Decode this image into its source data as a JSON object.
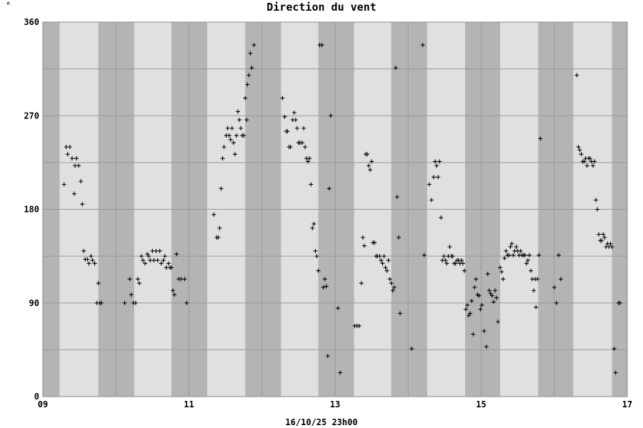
{
  "unit_label": "°",
  "footer": "16/10/25 23h00",
  "chart_data": {
    "type": "scatter",
    "title": "Direction du vent",
    "xlabel": "",
    "ylabel": "",
    "xlim": [
      9.0,
      17.0
    ],
    "ylim": [
      0,
      360
    ],
    "y_ticks": [
      0,
      90,
      180,
      270,
      360
    ],
    "x_ticks": [
      {
        "value": 9,
        "label": "09"
      },
      {
        "value": 11,
        "label": "11"
      },
      {
        "value": 13,
        "label": "13"
      },
      {
        "value": 15,
        "label": "15"
      },
      {
        "value": 17,
        "label": "17"
      }
    ],
    "grid": true,
    "night_bands": [
      [
        9.0,
        9.23
      ],
      [
        9.76,
        10.25
      ],
      [
        10.76,
        11.25
      ],
      [
        11.77,
        12.26
      ],
      [
        12.77,
        13.26
      ],
      [
        13.77,
        14.26
      ],
      [
        14.78,
        15.26
      ],
      [
        15.78,
        16.26
      ],
      [
        16.79,
        17.0
      ]
    ],
    "colors": {
      "night": "#b4b4b4",
      "day": "#e0e0e0",
      "grid": "#999999",
      "marker": "#000000"
    },
    "points": [
      [
        9.29,
        204
      ],
      [
        9.32,
        240
      ],
      [
        9.34,
        233
      ],
      [
        9.37,
        240
      ],
      [
        9.4,
        229
      ],
      [
        9.43,
        195
      ],
      [
        9.44,
        222
      ],
      [
        9.46,
        229
      ],
      [
        9.49,
        222
      ],
      [
        9.52,
        207
      ],
      [
        9.54,
        185
      ],
      [
        9.56,
        140
      ],
      [
        9.58,
        132
      ],
      [
        9.61,
        132
      ],
      [
        9.63,
        128
      ],
      [
        9.66,
        135
      ],
      [
        9.68,
        131
      ],
      [
        9.71,
        128
      ],
      [
        9.74,
        90
      ],
      [
        9.76,
        109
      ],
      [
        9.78,
        90
      ],
      [
        9.8,
        90
      ],
      [
        10.12,
        90
      ],
      [
        10.19,
        113
      ],
      [
        10.21,
        98
      ],
      [
        10.24,
        90
      ],
      [
        10.27,
        90
      ],
      [
        10.3,
        113
      ],
      [
        10.32,
        109
      ],
      [
        10.35,
        135
      ],
      [
        10.37,
        131
      ],
      [
        10.4,
        128
      ],
      [
        10.43,
        137
      ],
      [
        10.45,
        135
      ],
      [
        10.47,
        131
      ],
      [
        10.5,
        140
      ],
      [
        10.52,
        131
      ],
      [
        10.55,
        140
      ],
      [
        10.57,
        131
      ],
      [
        10.6,
        140
      ],
      [
        10.62,
        128
      ],
      [
        10.65,
        131
      ],
      [
        10.67,
        135
      ],
      [
        10.69,
        124
      ],
      [
        10.72,
        128
      ],
      [
        10.74,
        124
      ],
      [
        10.76,
        124
      ],
      [
        10.78,
        102
      ],
      [
        10.8,
        98
      ],
      [
        10.83,
        137
      ],
      [
        10.86,
        113
      ],
      [
        10.89,
        113
      ],
      [
        10.94,
        113
      ],
      [
        10.97,
        90
      ],
      [
        11.34,
        175
      ],
      [
        11.38,
        153
      ],
      [
        11.4,
        153
      ],
      [
        11.42,
        162
      ],
      [
        11.44,
        200
      ],
      [
        11.46,
        229
      ],
      [
        11.48,
        240
      ],
      [
        11.51,
        251
      ],
      [
        11.53,
        258
      ],
      [
        11.55,
        251
      ],
      [
        11.57,
        247
      ],
      [
        11.59,
        258
      ],
      [
        11.61,
        244
      ],
      [
        11.63,
        233
      ],
      [
        11.65,
        251
      ],
      [
        11.67,
        274
      ],
      [
        11.69,
        266
      ],
      [
        11.71,
        258
      ],
      [
        11.73,
        251
      ],
      [
        11.75,
        251
      ],
      [
        11.77,
        287
      ],
      [
        11.79,
        266
      ],
      [
        11.8,
        300
      ],
      [
        11.82,
        309
      ],
      [
        11.84,
        330
      ],
      [
        11.86,
        316
      ],
      [
        11.89,
        338
      ],
      [
        12.28,
        287
      ],
      [
        12.31,
        269
      ],
      [
        12.33,
        255
      ],
      [
        12.35,
        255
      ],
      [
        12.37,
        240
      ],
      [
        12.39,
        240
      ],
      [
        12.42,
        266
      ],
      [
        12.44,
        273
      ],
      [
        12.46,
        266
      ],
      [
        12.48,
        258
      ],
      [
        12.5,
        244
      ],
      [
        12.52,
        244
      ],
      [
        12.55,
        244
      ],
      [
        12.57,
        258
      ],
      [
        12.59,
        240
      ],
      [
        12.61,
        229
      ],
      [
        12.63,
        226
      ],
      [
        12.65,
        229
      ],
      [
        12.67,
        204
      ],
      [
        12.69,
        162
      ],
      [
        12.71,
        166
      ],
      [
        12.73,
        140
      ],
      [
        12.75,
        135
      ],
      [
        12.77,
        121
      ],
      [
        12.79,
        338
      ],
      [
        12.82,
        338
      ],
      [
        12.84,
        105
      ],
      [
        12.86,
        113
      ],
      [
        12.88,
        106
      ],
      [
        12.9,
        39
      ],
      [
        12.92,
        200
      ],
      [
        12.94,
        270
      ],
      [
        13.04,
        85
      ],
      [
        13.07,
        23
      ],
      [
        13.27,
        68
      ],
      [
        13.3,
        68
      ],
      [
        13.33,
        68
      ],
      [
        13.36,
        109
      ],
      [
        13.38,
        153
      ],
      [
        13.4,
        145
      ],
      [
        13.42,
        233
      ],
      [
        13.44,
        233
      ],
      [
        13.46,
        222
      ],
      [
        13.48,
        218
      ],
      [
        13.5,
        226
      ],
      [
        13.52,
        148
      ],
      [
        13.54,
        148
      ],
      [
        13.56,
        135
      ],
      [
        13.58,
        135
      ],
      [
        13.61,
        135
      ],
      [
        13.63,
        131
      ],
      [
        13.65,
        128
      ],
      [
        13.67,
        135
      ],
      [
        13.69,
        124
      ],
      [
        13.71,
        121
      ],
      [
        13.73,
        131
      ],
      [
        13.75,
        113
      ],
      [
        13.77,
        109
      ],
      [
        13.79,
        102
      ],
      [
        13.81,
        105
      ],
      [
        13.83,
        316
      ],
      [
        13.85,
        192
      ],
      [
        13.87,
        153
      ],
      [
        13.89,
        80
      ],
      [
        14.05,
        46
      ],
      [
        14.2,
        338
      ],
      [
        14.22,
        136
      ],
      [
        14.29,
        204
      ],
      [
        14.32,
        189
      ],
      [
        14.35,
        211
      ],
      [
        14.37,
        226
      ],
      [
        14.39,
        222
      ],
      [
        14.41,
        211
      ],
      [
        14.43,
        226
      ],
      [
        14.45,
        172
      ],
      [
        14.47,
        131
      ],
      [
        14.49,
        135
      ],
      [
        14.51,
        131
      ],
      [
        14.53,
        128
      ],
      [
        14.55,
        135
      ],
      [
        14.57,
        144
      ],
      [
        14.59,
        135
      ],
      [
        14.61,
        135
      ],
      [
        14.63,
        128
      ],
      [
        14.65,
        128
      ],
      [
        14.67,
        131
      ],
      [
        14.69,
        131
      ],
      [
        14.71,
        128
      ],
      [
        14.73,
        131
      ],
      [
        14.75,
        128
      ],
      [
        14.77,
        121
      ],
      [
        14.79,
        84
      ],
      [
        14.81,
        88
      ],
      [
        14.83,
        78
      ],
      [
        14.85,
        80
      ],
      [
        14.87,
        92
      ],
      [
        14.89,
        60
      ],
      [
        14.91,
        105
      ],
      [
        14.93,
        113
      ],
      [
        14.95,
        98
      ],
      [
        14.97,
        97
      ],
      [
        14.99,
        84
      ],
      [
        15.01,
        88
      ],
      [
        15.04,
        63
      ],
      [
        15.07,
        48
      ],
      [
        15.09,
        118
      ],
      [
        15.11,
        102
      ],
      [
        15.13,
        99
      ],
      [
        15.15,
        97
      ],
      [
        15.17,
        91
      ],
      [
        15.19,
        102
      ],
      [
        15.21,
        95
      ],
      [
        15.23,
        72
      ],
      [
        15.26,
        124
      ],
      [
        15.28,
        120
      ],
      [
        15.3,
        113
      ],
      [
        15.32,
        133
      ],
      [
        15.34,
        140
      ],
      [
        15.36,
        136
      ],
      [
        15.38,
        136
      ],
      [
        15.4,
        144
      ],
      [
        15.42,
        147
      ],
      [
        15.44,
        136
      ],
      [
        15.46,
        140
      ],
      [
        15.48,
        144
      ],
      [
        15.5,
        140
      ],
      [
        15.52,
        136
      ],
      [
        15.54,
        140
      ],
      [
        15.56,
        136
      ],
      [
        15.58,
        136
      ],
      [
        15.6,
        136
      ],
      [
        15.62,
        128
      ],
      [
        15.64,
        131
      ],
      [
        15.66,
        136
      ],
      [
        15.68,
        121
      ],
      [
        15.7,
        113
      ],
      [
        15.72,
        102
      ],
      [
        15.74,
        113
      ],
      [
        15.75,
        86
      ],
      [
        15.77,
        113
      ],
      [
        15.79,
        136
      ],
      [
        15.81,
        248
      ],
      [
        16.0,
        105
      ],
      [
        16.03,
        90
      ],
      [
        16.06,
        136
      ],
      [
        16.09,
        113
      ],
      [
        16.31,
        309
      ],
      [
        16.33,
        240
      ],
      [
        16.35,
        237
      ],
      [
        16.37,
        233
      ],
      [
        16.39,
        226
      ],
      [
        16.41,
        226
      ],
      [
        16.43,
        229
      ],
      [
        16.45,
        222
      ],
      [
        16.47,
        229
      ],
      [
        16.49,
        229
      ],
      [
        16.51,
        226
      ],
      [
        16.53,
        222
      ],
      [
        16.55,
        226
      ],
      [
        16.57,
        189
      ],
      [
        16.59,
        180
      ],
      [
        16.61,
        156
      ],
      [
        16.63,
        150
      ],
      [
        16.65,
        150
      ],
      [
        16.67,
        156
      ],
      [
        16.69,
        153
      ],
      [
        16.71,
        144
      ],
      [
        16.73,
        147
      ],
      [
        16.75,
        144
      ],
      [
        16.77,
        147
      ],
      [
        16.79,
        144
      ],
      [
        16.82,
        46
      ],
      [
        16.84,
        23
      ],
      [
        16.88,
        90
      ],
      [
        16.9,
        90
      ]
    ]
  }
}
